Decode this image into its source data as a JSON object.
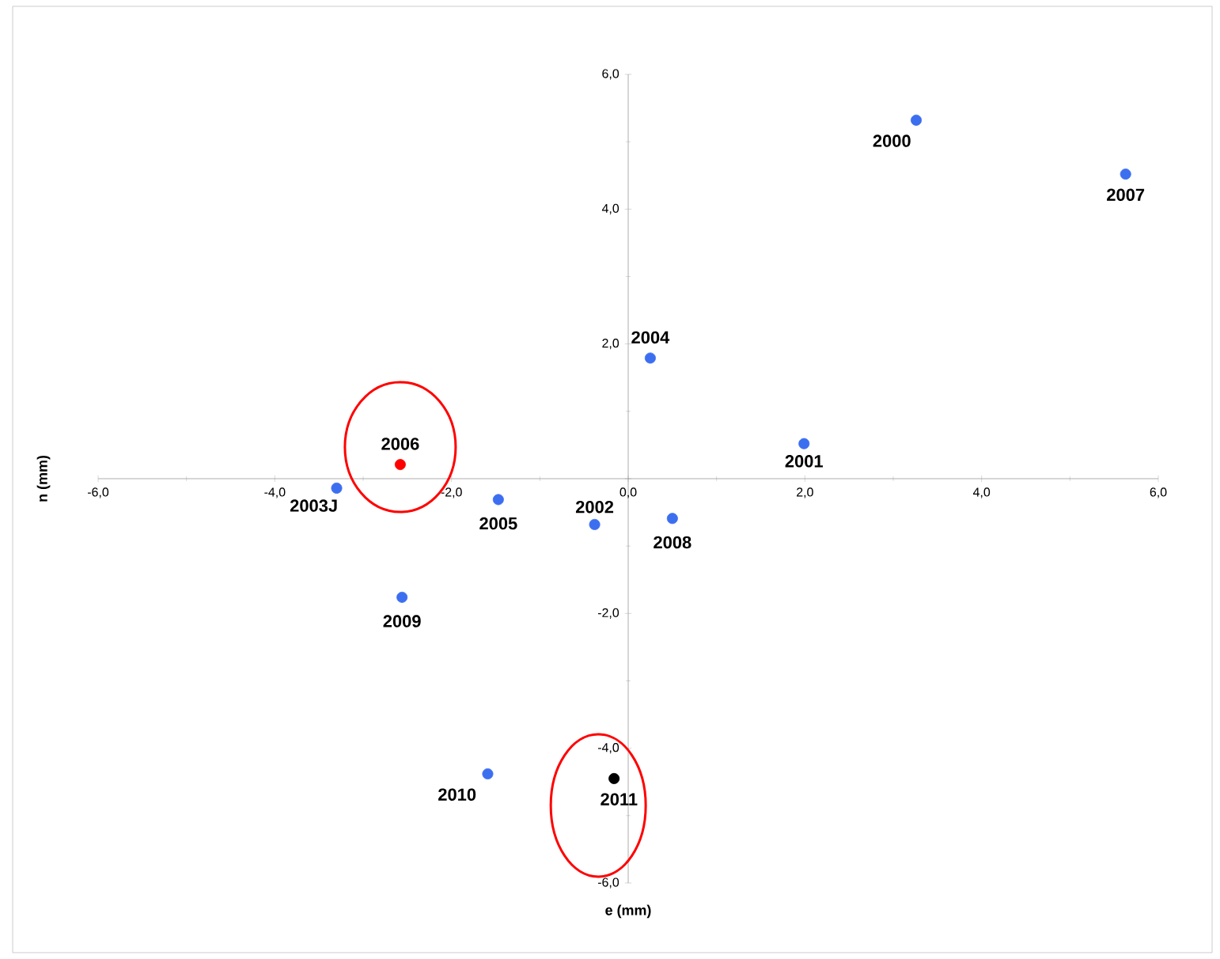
{
  "chart_data": {
    "type": "scatter",
    "xlabel": "e (mm)",
    "ylabel": "n (mm)",
    "x": [
      3.26,
      5.63,
      0.25,
      1.99,
      -2.58,
      -3.3,
      -1.47,
      -0.38,
      0.5,
      -2.56,
      -1.59,
      -0.16
    ],
    "series": [
      {
        "values": [
          5.32,
          4.52,
          1.79,
          0.52,
          0.21,
          -0.14,
          -0.31,
          -0.68,
          -0.59,
          -1.76,
          -4.38,
          -4.45
        ],
        "colors": [
          "#3c6ef0",
          "#3c6ef0",
          "#3c6ef0",
          "#3c6ef0",
          "#ff0000",
          "#3c6ef0",
          "#3c6ef0",
          "#3c6ef0",
          "#3c6ef0",
          "#3c6ef0",
          "#3c6ef0",
          "#000000"
        ]
      }
    ],
    "marker": "circle",
    "xlim": [
      -6,
      6
    ],
    "ylim": [
      -6,
      6
    ],
    "xticks": [
      {
        "value": -6,
        "label": "-6,0"
      },
      {
        "value": -4,
        "label": "-4,0"
      },
      {
        "value": -2,
        "label": "-2,0"
      },
      {
        "value": 0,
        "label": "0,0"
      },
      {
        "value": 2,
        "label": "2,0"
      },
      {
        "value": 4,
        "label": "4,0"
      },
      {
        "value": 6,
        "label": "6,0"
      }
    ],
    "yticks": [
      {
        "value": -6,
        "label": "-6,0"
      },
      {
        "value": -4,
        "label": "-4,0"
      },
      {
        "value": -2,
        "label": "-2,0"
      },
      {
        "value": 0,
        "label": null
      },
      {
        "value": 2,
        "label": "2,0"
      },
      {
        "value": 4,
        "label": "4,0"
      },
      {
        "value": 6,
        "label": "6,0"
      }
    ],
    "annotations": [
      {
        "text": "2000",
        "x": 3.26,
        "y": 5.32
      },
      {
        "text": "2007",
        "x": 5.63,
        "y": 4.52
      },
      {
        "text": "2004",
        "x": 0.25,
        "y": 1.79
      },
      {
        "text": "2001",
        "x": 1.99,
        "y": 0.52
      },
      {
        "text": "2006",
        "x": -2.58,
        "y": 0.21
      },
      {
        "text": "2003J",
        "x": -3.3,
        "y": -0.14
      },
      {
        "text": "2005",
        "x": -1.47,
        "y": -0.31
      },
      {
        "text": "2002",
        "x": -0.38,
        "y": -0.68
      },
      {
        "text": "2008",
        "x": 0.5,
        "y": -0.59
      },
      {
        "text": "2009",
        "x": -2.56,
        "y": -1.76
      },
      {
        "text": "2010",
        "x": -1.59,
        "y": -4.38
      },
      {
        "text": "2011",
        "x": -0.16,
        "y": -4.45
      }
    ]
  }
}
